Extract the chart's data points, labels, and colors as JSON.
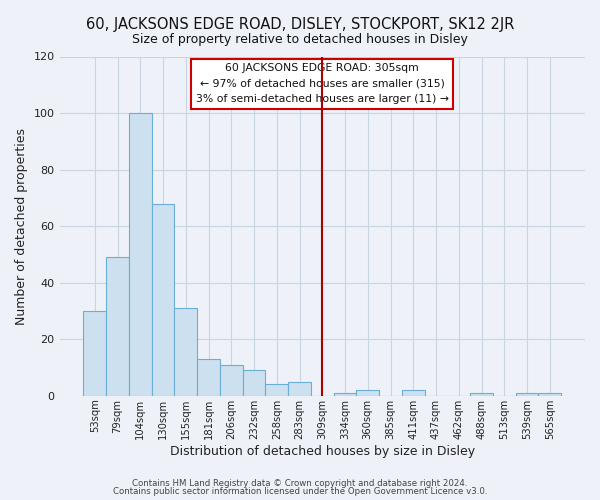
{
  "title": "60, JACKSONS EDGE ROAD, DISLEY, STOCKPORT, SK12 2JR",
  "subtitle": "Size of property relative to detached houses in Disley",
  "xlabel": "Distribution of detached houses by size in Disley",
  "ylabel": "Number of detached properties",
  "bar_labels": [
    "53sqm",
    "79sqm",
    "104sqm",
    "130sqm",
    "155sqm",
    "181sqm",
    "206sqm",
    "232sqm",
    "258sqm",
    "283sqm",
    "309sqm",
    "334sqm",
    "360sqm",
    "385sqm",
    "411sqm",
    "437sqm",
    "462sqm",
    "488sqm",
    "513sqm",
    "539sqm",
    "565sqm"
  ],
  "bar_values": [
    30,
    49,
    100,
    68,
    31,
    13,
    11,
    9,
    4,
    5,
    0,
    1,
    2,
    0,
    2,
    0,
    0,
    1,
    0,
    1,
    1
  ],
  "bar_color": "#cce0f0",
  "bar_edge_color": "#6aaed6",
  "ylim": [
    0,
    120
  ],
  "yticks": [
    0,
    20,
    40,
    60,
    80,
    100,
    120
  ],
  "vline_x_index": 10,
  "vline_color": "#aa0000",
  "legend_title": "60 JACKSONS EDGE ROAD: 305sqm",
  "legend_line1": "← 97% of detached houses are smaller (315)",
  "legend_line2": "3% of semi-detached houses are larger (11) →",
  "legend_box_color": "#cc0000",
  "footnote1": "Contains HM Land Registry data © Crown copyright and database right 2024.",
  "footnote2": "Contains public sector information licensed under the Open Government Licence v3.0.",
  "bg_color": "#eef2f8",
  "grid_color": "#c8d4e0",
  "title_fontsize": 10.5,
  "subtitle_fontsize": 9
}
